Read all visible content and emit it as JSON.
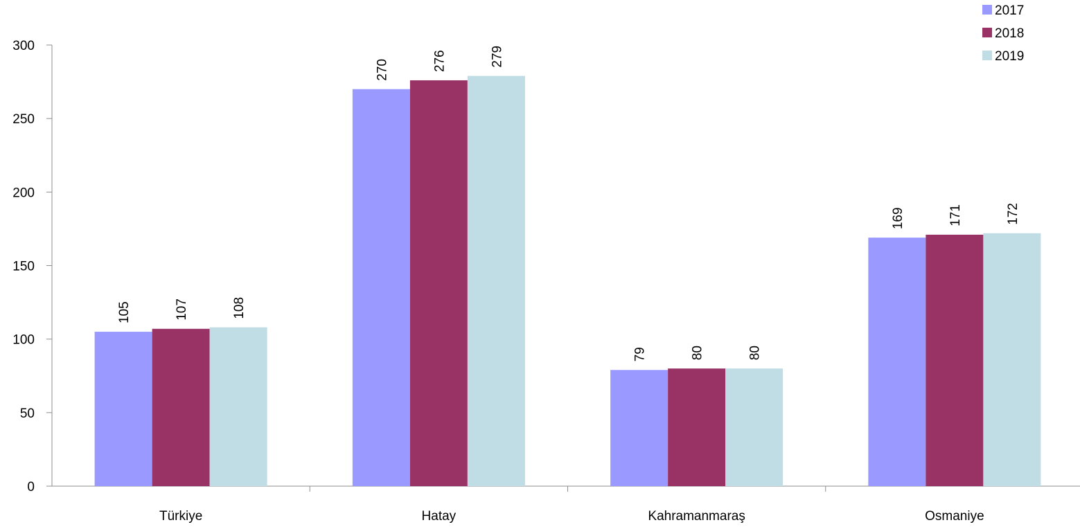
{
  "chart_data": {
    "type": "bar",
    "title": "",
    "xlabel": "",
    "ylabel": "",
    "categories": [
      "Türkiye",
      "Hatay",
      "Kahramanmaraş",
      "Osmaniye"
    ],
    "series": [
      {
        "name": "2017",
        "color": "#9999ff",
        "values": [
          105,
          270,
          79,
          169
        ]
      },
      {
        "name": "2018",
        "color": "#993366",
        "values": [
          107,
          276,
          80,
          171
        ]
      },
      {
        "name": "2019",
        "color": "#c0dde6",
        "values": [
          108,
          279,
          80,
          172
        ]
      }
    ],
    "ylim": [
      0,
      300
    ],
    "yticks": [
      0,
      50,
      100,
      150,
      200,
      250,
      300
    ],
    "grid": false,
    "legend_position": "top-right",
    "data_labels": "rotated-vertical"
  }
}
